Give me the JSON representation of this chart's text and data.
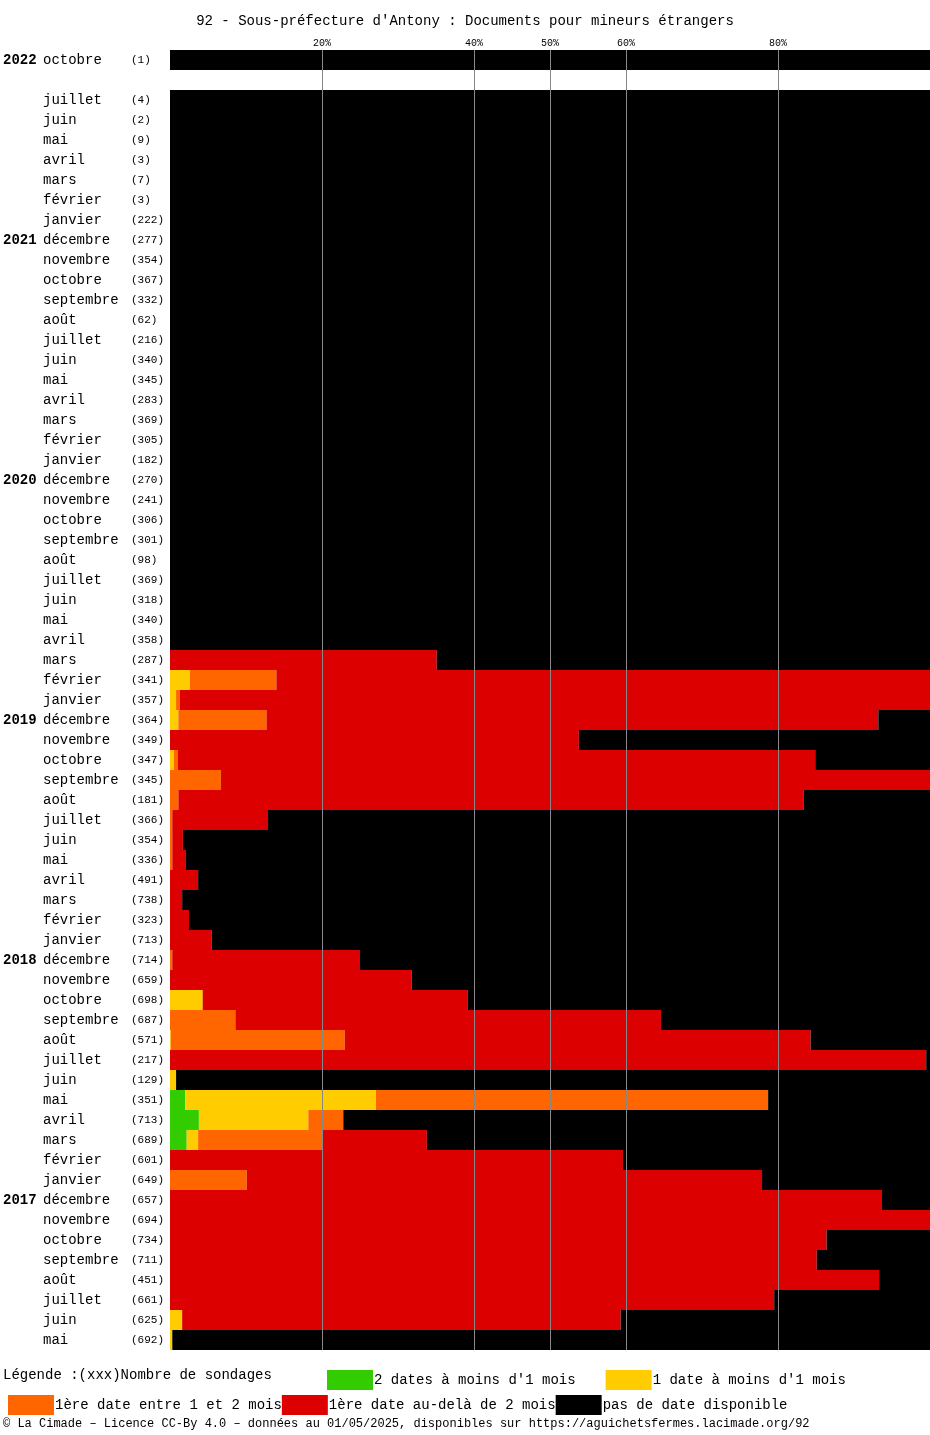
{
  "chart_data": {
    "type": "bar",
    "orientation": "horizontal",
    "stacked": true,
    "title": "92 - Sous-préfecture d'Antony : Documents pour mineurs étrangers",
    "categories": [
      "2022 octobre (1)",
      null,
      "juillet (4)",
      "juin (2)",
      "mai (9)",
      "avril (3)",
      "mars (7)",
      "février (3)",
      "janvier (222)",
      "2021 décembre (277)",
      "novembre (354)",
      "octobre (367)",
      "septembre (332)",
      "août (62)",
      "juillet (216)",
      "juin (340)",
      "mai (345)",
      "avril (283)",
      "mars (369)",
      "février (305)",
      "janvier (182)",
      "2020 décembre (270)",
      "novembre (241)",
      "octobre (306)",
      "septembre (301)",
      "août (98)",
      "juillet (369)",
      "juin (318)",
      "mai (340)",
      "avril (358)",
      "mars (287)",
      "février (341)",
      "janvier (357)",
      "2019 décembre (364)",
      "novembre (349)",
      "octobre (347)",
      "septembre (345)",
      "août (181)",
      "juillet (366)",
      "juin (354)",
      "mai (336)",
      "avril (491)",
      "mars (738)",
      "février (323)",
      "janvier (713)",
      "2018 décembre (714)",
      "novembre (659)",
      "octobre (698)",
      "septembre (687)",
      "août (571)",
      "juillet (217)",
      "juin (129)",
      "mai (351)",
      "avril (713)",
      "mars (689)",
      "février (601)",
      "janvier (649)",
      "2017 décembre (657)",
      "novembre (694)",
      "octobre (734)",
      "septembre (711)",
      "août (451)",
      "juillet (661)",
      "juin (625)",
      "mai (692)"
    ],
    "series": [
      {
        "name": "2 dates à moins d'1 mois",
        "color": "#33cc00",
        "values": [
          0,
          null,
          0,
          0,
          0,
          0,
          0,
          0,
          0,
          0,
          0,
          0,
          0,
          0,
          0,
          0,
          0,
          0,
          0,
          0,
          0,
          0,
          0,
          0,
          0,
          0,
          0,
          0,
          0,
          0,
          0,
          0,
          0,
          0,
          0,
          0,
          0,
          0,
          0,
          0,
          0,
          0,
          0,
          0,
          0,
          0,
          0,
          0,
          0,
          0,
          0,
          0,
          2.0,
          3.8,
          2.2,
          0,
          0,
          0,
          0,
          0,
          0,
          0,
          0,
          0,
          0
        ]
      },
      {
        "name": "1 date à moins d'1 mois",
        "color": "#ffcc00",
        "values": [
          0,
          null,
          0,
          0,
          0,
          0,
          0,
          0,
          0,
          0,
          0,
          0,
          0,
          0,
          0,
          0,
          0,
          0,
          0,
          0,
          0,
          0,
          0,
          0,
          0,
          0,
          0,
          0,
          0,
          0,
          0,
          2.6,
          0.8,
          1.1,
          0,
          0.5,
          0,
          0,
          0,
          0,
          0,
          0,
          0,
          0,
          0,
          0,
          0,
          4.3,
          0,
          0.1,
          0,
          0.8,
          25.1,
          14.4,
          1.5,
          0,
          0,
          0,
          0,
          0,
          0,
          0,
          0,
          1.6,
          0.3
        ]
      },
      {
        "name": "1ère date entre 1 et 2 mois",
        "color": "#ff6600",
        "values": [
          0,
          null,
          0,
          0,
          0,
          0,
          0,
          0,
          0,
          0,
          0,
          0,
          0,
          0,
          0,
          0,
          0,
          0,
          0,
          0,
          0,
          0,
          0,
          0,
          0,
          0,
          0,
          0,
          0,
          0,
          0,
          11.4,
          0.5,
          11.6,
          0,
          0.5,
          6.7,
          1.1,
          0.3,
          0.3,
          0.3,
          0,
          0,
          0,
          0,
          0.3,
          0,
          0,
          8.6,
          22.9,
          0,
          0,
          51.6,
          4.6,
          16.3,
          0,
          10.1,
          0,
          0,
          0,
          0,
          0,
          0,
          0,
          0
        ]
      },
      {
        "name": "1ère date au-delà de 2 mois",
        "color": "#dd0000",
        "values": [
          0,
          null,
          0,
          0,
          0,
          0,
          0,
          0,
          0,
          0,
          0,
          0,
          0,
          0,
          0,
          0,
          0,
          0,
          0,
          0,
          0,
          0,
          0,
          0,
          0,
          0,
          0,
          0,
          0,
          0,
          35.1,
          86.0,
          98.7,
          80.5,
          53.8,
          83.9,
          93.3,
          82.3,
          12.6,
          1.4,
          1.8,
          3.7,
          1.6,
          2.5,
          5.5,
          24.7,
          31.8,
          34.9,
          56.0,
          61.3,
          99.5,
          0,
          0,
          0,
          13.8,
          59.6,
          67.8,
          93.6,
          100,
          86.4,
          85.1,
          93.3,
          79.5,
          57.7,
          0
        ]
      },
      {
        "name": "pas de date disponible",
        "color": "#000000",
        "values": [
          100,
          null,
          100,
          100,
          100,
          100,
          100,
          100,
          100,
          100,
          100,
          100,
          100,
          100,
          100,
          100,
          100,
          100,
          100,
          100,
          100,
          100,
          100,
          100,
          100,
          100,
          100,
          100,
          100,
          100,
          64.9,
          0,
          0,
          6.8,
          46.2,
          15.1,
          0,
          16.6,
          87.1,
          98.3,
          97.9,
          96.3,
          98.4,
          97.5,
          94.5,
          75.0,
          68.2,
          60.8,
          35.4,
          15.7,
          0.5,
          99.2,
          21.3,
          77.2,
          66.2,
          40.4,
          22.1,
          6.4,
          0,
          13.6,
          14.9,
          6.7,
          20.5,
          40.7,
          99.7
        ]
      }
    ],
    "xlim": [
      0,
      100
    ],
    "xticks": [
      {
        "value": 20,
        "label": "20%"
      },
      {
        "value": 40,
        "label": "40%"
      },
      {
        "value": 50,
        "label": "50%"
      },
      {
        "value": 60,
        "label": "60%"
      },
      {
        "value": 80,
        "label": "80%"
      }
    ],
    "grid": "x",
    "legend": "bottom",
    "annotations": [
      "Légende :(xxx)Nombre de sondages",
      "© La Cimade – Licence CC-By 4.0 – données au 01/05/2025, disponibles sur https://aguichetsfermes.lacimade.org/92"
    ]
  }
}
